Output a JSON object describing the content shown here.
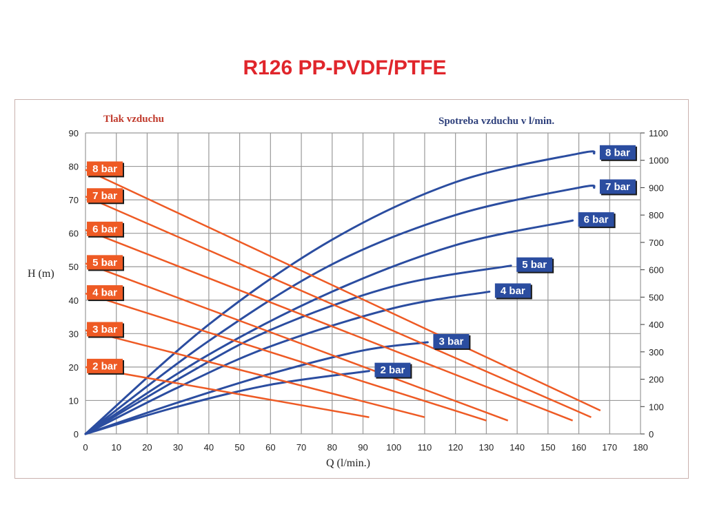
{
  "title": "R126 PP-PVDF/PTFE",
  "colors": {
    "title": "#e0252b",
    "pressure_label": "#c0392b",
    "air_label": "#2c3e7a",
    "orange_line": "#ee5a24",
    "blue_curve": "#2b4da0",
    "orange_badge": "#ee5a24",
    "blue_badge": "#2b4da0",
    "grid": "#999999"
  },
  "chart_data": {
    "type": "line",
    "left_label": "Tlak vzduchu",
    "right_label": "Spotreba vzduchu v l/min.",
    "xlabel": "Q (l/min.)",
    "ylabel": "H (m)",
    "xlim": [
      0,
      180
    ],
    "ylim": [
      0,
      90
    ],
    "y2lim": [
      0,
      1100
    ],
    "x_ticks": [
      0,
      10,
      20,
      30,
      40,
      50,
      60,
      70,
      80,
      90,
      100,
      110,
      120,
      130,
      140,
      150,
      160,
      170,
      180
    ],
    "y_ticks": [
      0,
      10,
      20,
      30,
      40,
      50,
      60,
      70,
      80,
      90
    ],
    "y2_ticks": [
      0,
      100,
      200,
      300,
      400,
      500,
      600,
      700,
      800,
      900,
      1000,
      1100
    ],
    "grid": true,
    "head_lines": [
      {
        "name": "8 bar",
        "x": [
          0,
          167
        ],
        "y": [
          79,
          7
        ]
      },
      {
        "name": "7 bar",
        "x": [
          0,
          164
        ],
        "y": [
          71,
          5
        ]
      },
      {
        "name": "6 bar",
        "x": [
          0,
          158
        ],
        "y": [
          61,
          4
        ]
      },
      {
        "name": "5 bar",
        "x": [
          0,
          137
        ],
        "y": [
          51,
          4
        ]
      },
      {
        "name": "4 bar",
        "x": [
          0,
          130
        ],
        "y": [
          42,
          4
        ]
      },
      {
        "name": "3 bar",
        "x": [
          0,
          110
        ],
        "y": [
          31,
          5
        ]
      },
      {
        "name": "2 bar",
        "x": [
          0,
          92
        ],
        "y": [
          20,
          5
        ]
      }
    ],
    "air_curves": [
      {
        "name": "8 bar",
        "x": [
          0,
          40,
          80,
          120,
          160,
          165
        ],
        "y2": [
          0,
          400,
          710,
          920,
          1025,
          1025
        ]
      },
      {
        "name": "7 bar",
        "x": [
          0,
          40,
          80,
          120,
          160,
          165
        ],
        "y2": [
          0,
          340,
          620,
          800,
          900,
          900
        ]
      },
      {
        "name": "6 bar",
        "x": [
          0,
          40,
          80,
          120,
          158
        ],
        "y2": [
          0,
          290,
          520,
          690,
          780
        ]
      },
      {
        "name": "5 bar",
        "x": [
          0,
          30,
          60,
          100,
          138
        ],
        "y2": [
          0,
          200,
          380,
          540,
          615
        ]
      },
      {
        "name": "4 bar",
        "x": [
          0,
          30,
          60,
          100,
          131
        ],
        "y2": [
          0,
          170,
          320,
          460,
          520
        ]
      },
      {
        "name": "3 bar",
        "x": [
          0,
          30,
          60,
          90,
          111
        ],
        "y2": [
          0,
          115,
          220,
          305,
          335
        ]
      },
      {
        "name": "2 bar",
        "x": [
          0,
          30,
          60,
          92
        ],
        "y2": [
          0,
          100,
          180,
          230
        ]
      }
    ]
  }
}
